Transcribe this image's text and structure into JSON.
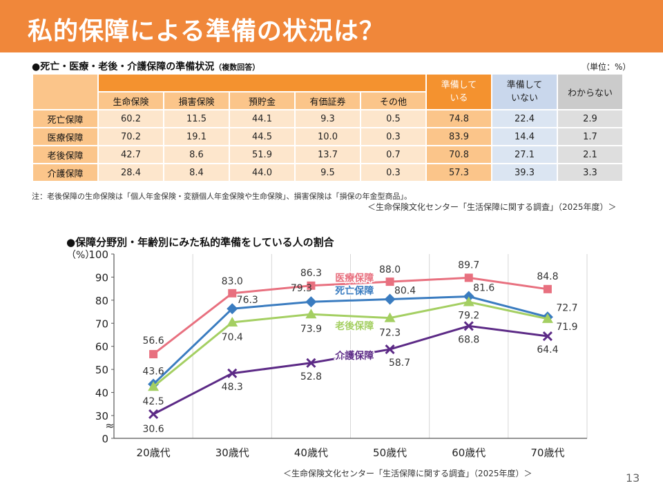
{
  "page": {
    "title": "私的保障による準備の状況は？",
    "page_number": "13"
  },
  "table_section": {
    "title": "●死亡・医療・老後・介護保障の準備状況",
    "title_note": "（複数回答）",
    "unit": "（単位：%）",
    "columns": [
      "生命保険",
      "損害保険",
      "預貯金",
      "有価証券",
      "その他"
    ],
    "prepared_header": "準備している",
    "not_prepared_header": "準備していない",
    "unknown_header": "わからない",
    "rows": [
      {
        "label": "死亡保障",
        "values": [
          "60.2",
          "11.5",
          "44.1",
          "9.3",
          "0.5"
        ],
        "prepared": "74.8",
        "not_prepared": "22.4",
        "unknown": "2.9"
      },
      {
        "label": "医療保障",
        "values": [
          "70.2",
          "19.1",
          "44.5",
          "10.0",
          "0.3"
        ],
        "prepared": "83.9",
        "not_prepared": "14.4",
        "unknown": "1.7"
      },
      {
        "label": "老後保障",
        "values": [
          "42.7",
          "8.6",
          "51.9",
          "13.7",
          "0.7"
        ],
        "prepared": "70.8",
        "not_prepared": "27.1",
        "unknown": "2.1"
      },
      {
        "label": "介護保障",
        "values": [
          "28.4",
          "8.4",
          "44.0",
          "9.5",
          "0.3"
        ],
        "prepared": "57.3",
        "not_prepared": "39.3",
        "unknown": "3.3"
      }
    ],
    "note": "注：老後保障の生命保険は「個人年金保険・変額個人年金保険や生命保険」、損害保険は「損保の年金型商品」。",
    "source": "＜生命保険文化センター「生活保障に関する調査」（2025年度）＞"
  },
  "chart_section": {
    "title": "●保障分野別・年齢別にみた私的準備をしている人の割合",
    "source": "＜生命保険文化センター「生活保障に関する調査」（2025年度）＞"
  },
  "chart_data": {
    "type": "line",
    "ylabel": "（%）",
    "ylim": [
      0,
      100
    ],
    "yticks": [
      0,
      30,
      40,
      50,
      60,
      70,
      80,
      90,
      100
    ],
    "axis_break_symbol": "≈",
    "categories": [
      "20歳代",
      "30歳代",
      "40歳代",
      "50歳代",
      "60歳代",
      "70歳代"
    ],
    "grid": "vertical lines",
    "series": [
      {
        "name": "医療保障",
        "color": "#e8707f",
        "marker": "square",
        "values": [
          56.6,
          83.0,
          86.3,
          88.0,
          89.7,
          84.8
        ],
        "labels": [
          "56.6",
          "83.0",
          "86.3",
          "88.0",
          "89.7",
          "84.8"
        ]
      },
      {
        "name": "死亡保障",
        "color": "#3a7cc0",
        "marker": "diamond",
        "values": [
          43.6,
          76.3,
          79.3,
          80.4,
          81.6,
          72.7
        ],
        "labels": [
          "43.6",
          "76.3",
          "79.3",
          "80.4",
          "81.6",
          "72.7"
        ]
      },
      {
        "name": "老後保障",
        "color": "#a4cf62",
        "marker": "triangle",
        "values": [
          42.5,
          70.4,
          73.9,
          72.3,
          79.2,
          71.9
        ],
        "labels": [
          "42.5",
          "70.4",
          "73.9",
          "72.3",
          "79.2",
          "71.9"
        ]
      },
      {
        "name": "介護保障",
        "color": "#5c2a86",
        "marker": "cross",
        "values": [
          30.6,
          48.3,
          52.8,
          58.7,
          68.8,
          64.4
        ],
        "labels": [
          "30.6",
          "48.3",
          "52.8",
          "58.7",
          "68.8",
          "64.4"
        ]
      }
    ]
  }
}
